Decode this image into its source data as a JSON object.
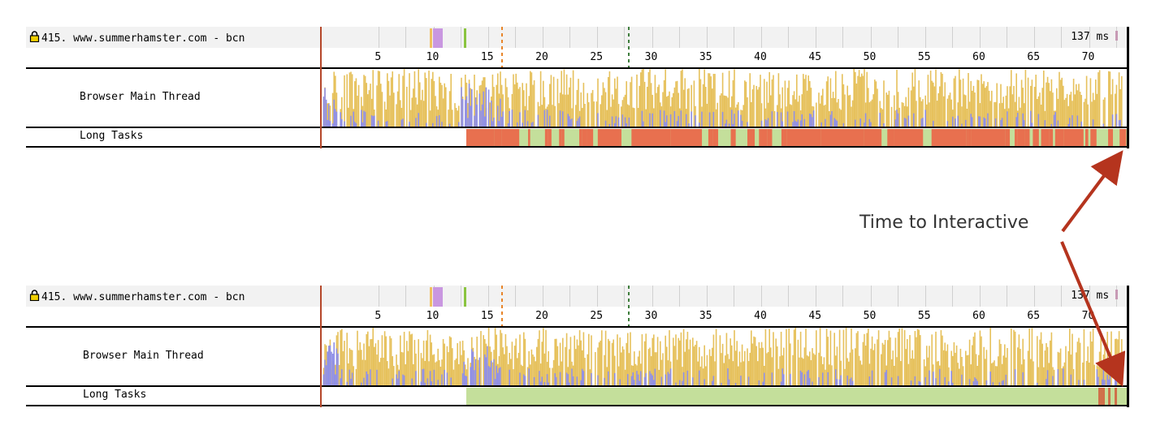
{
  "waterfalls": [
    {
      "title": "415. www.summerhamster.com - bcn",
      "total": "137 ms",
      "rows": {
        "thread": "Browser Main Thread",
        "long_tasks": "Long Tasks"
      },
      "tick_labels": [
        "5",
        "10",
        "15",
        "20",
        "25",
        "30",
        "35",
        "40",
        "45",
        "50",
        "55",
        "60",
        "65",
        "70"
      ],
      "long_task_state": "many-long-tasks"
    },
    {
      "title": "415. www.summerhamster.com - bcn",
      "total": "137 ms",
      "rows": {
        "thread": "Browser Main Thread",
        "long_tasks": "Long Tasks"
      },
      "tick_labels": [
        "5",
        "10",
        "15",
        "20",
        "25",
        "30",
        "35",
        "40",
        "45",
        "50",
        "55",
        "60",
        "65",
        "70"
      ],
      "long_task_state": "few-long-tasks-at-end"
    }
  ],
  "annotation": {
    "label": "Time to Interactive"
  },
  "colors": {
    "script": "#e6c15c",
    "layout": "#8f8fe8",
    "long_task": "#e8704f",
    "idle": "#c4df9b",
    "arrow": "#b5341e",
    "start": "#b5472a"
  }
}
